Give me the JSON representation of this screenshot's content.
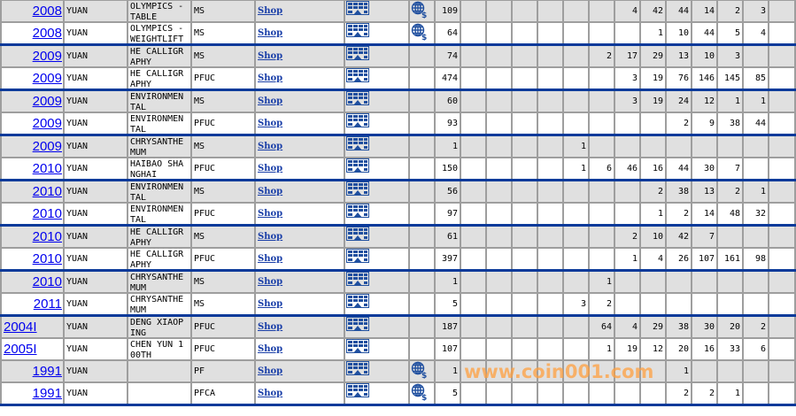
{
  "shop_label": "Shop",
  "icons": {
    "gallery": "gallery-icon",
    "globe": "globe-dollar-icon"
  },
  "colors": {
    "row_alt": "#e0e0e0",
    "separator": "#0a3a9a",
    "link": "#0000ee",
    "watermark": "#ffa040"
  },
  "watermark": "www.coin001.com",
  "rows": [
    {
      "year": "2008",
      "denom": "YUAN",
      "name": "OLYMPICS - TABLE",
      "grade": "MS",
      "globe": true,
      "total": "109",
      "counts": [
        "",
        "",
        "",
        "",
        "",
        "",
        "4",
        "42",
        "44",
        "14",
        "2",
        "3",
        ""
      ],
      "sep": false
    },
    {
      "year": "2008",
      "denom": "YUAN",
      "name": "OLYMPICS - WEIGHTLIFTI",
      "grade": "MS",
      "globe": true,
      "total": "64",
      "counts": [
        "",
        "",
        "",
        "",
        "",
        "",
        "",
        "1",
        "10",
        "44",
        "5",
        "4",
        ""
      ],
      "sep": true
    },
    {
      "year": "2009",
      "denom": "YUAN",
      "name": "HE CALLIGRAPHY",
      "grade": "MS",
      "globe": false,
      "total": "74",
      "counts": [
        "",
        "",
        "",
        "",
        "",
        "2",
        "17",
        "29",
        "13",
        "10",
        "3",
        "",
        ""
      ],
      "sep": false
    },
    {
      "year": "2009",
      "denom": "YUAN",
      "name": "HE CALLIGRAPHY",
      "grade": "PFUC",
      "globe": false,
      "total": "474",
      "counts": [
        "",
        "",
        "",
        "",
        "",
        "",
        "3",
        "19",
        "76",
        "146",
        "145",
        "85",
        ""
      ],
      "sep": true
    },
    {
      "year": "2009",
      "denom": "YUAN",
      "name": "ENVIRONMENTAL",
      "grade": "MS",
      "globe": false,
      "total": "60",
      "counts": [
        "",
        "",
        "",
        "",
        "",
        "",
        "3",
        "19",
        "24",
        "12",
        "1",
        "1",
        ""
      ],
      "sep": false
    },
    {
      "year": "2009",
      "denom": "YUAN",
      "name": "ENVIRONMENTAL",
      "grade": "PFUC",
      "globe": false,
      "total": "93",
      "counts": [
        "",
        "",
        "",
        "",
        "",
        "",
        "",
        "",
        "2",
        "9",
        "38",
        "44",
        ""
      ],
      "sep": true
    },
    {
      "year": "2009",
      "denom": "YUAN",
      "name": "CHRYSANTHEMUM",
      "grade": "MS",
      "globe": false,
      "total": "1",
      "counts": [
        "",
        "",
        "",
        "",
        "1",
        "",
        "",
        "",
        "",
        "",
        "",
        "",
        ""
      ],
      "sep": false
    },
    {
      "year": "2010",
      "denom": "YUAN",
      "name": "HAIBAO SHANGHAI",
      "grade": "PFUC",
      "globe": false,
      "total": "150",
      "counts": [
        "",
        "",
        "",
        "",
        "1",
        "6",
        "46",
        "16",
        "44",
        "30",
        "7",
        "",
        ""
      ],
      "sep": true
    },
    {
      "year": "2010",
      "denom": "YUAN",
      "name": "ENVIRONMENTAL",
      "grade": "MS",
      "globe": false,
      "total": "56",
      "counts": [
        "",
        "",
        "",
        "",
        "",
        "",
        "",
        "2",
        "38",
        "13",
        "2",
        "1",
        ""
      ],
      "sep": false
    },
    {
      "year": "2010",
      "denom": "YUAN",
      "name": "ENVIRONMENTAL",
      "grade": "PFUC",
      "globe": false,
      "total": "97",
      "counts": [
        "",
        "",
        "",
        "",
        "",
        "",
        "",
        "1",
        "2",
        "14",
        "48",
        "32",
        ""
      ],
      "sep": true
    },
    {
      "year": "2010",
      "denom": "YUAN",
      "name": "HE CALLIGRAPHY",
      "grade": "MS",
      "globe": false,
      "total": "61",
      "counts": [
        "",
        "",
        "",
        "",
        "",
        "",
        "2",
        "10",
        "42",
        "7",
        "",
        "",
        ""
      ],
      "sep": false
    },
    {
      "year": "2010",
      "denom": "YUAN",
      "name": "HE CALLIGRAPHY",
      "grade": "PFUC",
      "globe": false,
      "total": "397",
      "counts": [
        "",
        "",
        "",
        "",
        "",
        "",
        "1",
        "4",
        "26",
        "107",
        "161",
        "98",
        ""
      ],
      "sep": true
    },
    {
      "year": "2010",
      "denom": "YUAN",
      "name": "CHRYSANTHEMUM",
      "grade": "MS",
      "globe": false,
      "total": "1",
      "counts": [
        "",
        "",
        "",
        "",
        "",
        "1",
        "",
        "",
        "",
        "",
        "",
        "",
        ""
      ],
      "sep": false
    },
    {
      "year": "2011",
      "denom": "YUAN",
      "name": "CHRYSANTHEMUM",
      "grade": "MS",
      "globe": false,
      "total": "5",
      "counts": [
        "",
        "",
        "",
        "",
        "3",
        "2",
        "",
        "",
        "",
        "",
        "",
        "",
        ""
      ],
      "sep": true
    },
    {
      "year": "2004I",
      "denom": "YUAN",
      "name": "DENG XIAOPING",
      "grade": "PFUC",
      "globe": false,
      "total": "187",
      "counts": [
        "",
        "",
        "",
        "",
        "",
        "64",
        "4",
        "29",
        "38",
        "30",
        "20",
        "2",
        ""
      ],
      "sep": false,
      "left": true
    },
    {
      "year": "2005I",
      "denom": "YUAN",
      "name": "CHEN YUN 100TH",
      "grade": "PFUC",
      "globe": false,
      "total": "107",
      "counts": [
        "",
        "",
        "",
        "",
        "",
        "1",
        "19",
        "12",
        "20",
        "16",
        "33",
        "6",
        ""
      ],
      "sep": false,
      "left": true
    },
    {
      "year": "1991",
      "denom": "YUAN",
      "name": "",
      "grade": "PF",
      "globe": true,
      "total": "1",
      "counts": [
        "",
        "",
        "",
        "",
        "",
        "",
        "",
        "",
        "1",
        "",
        "",
        "",
        ""
      ],
      "sep": false
    },
    {
      "year": "1991",
      "denom": "YUAN",
      "name": "",
      "grade": "PFCA",
      "globe": true,
      "total": "5",
      "counts": [
        "",
        "",
        "",
        "",
        "",
        "",
        "",
        "",
        "2",
        "2",
        "1",
        "",
        ""
      ],
      "sep": true
    }
  ]
}
